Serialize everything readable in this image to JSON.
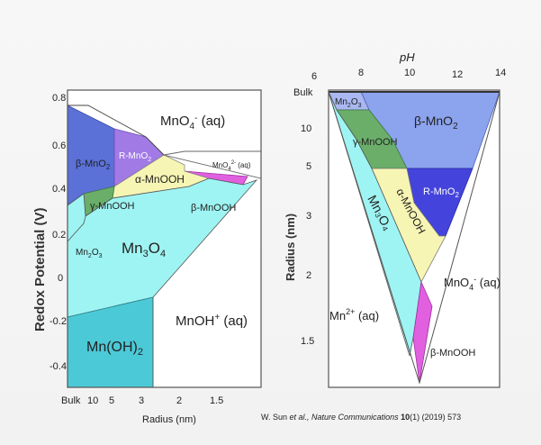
{
  "citation": {
    "authors": "W. Sun",
    "etal": " et al.,",
    "journal": "Nature Communications",
    "volume": "10",
    "issue_pages": "(1) (2019) 573"
  },
  "chart_data": [
    {
      "type": "phase-diagram",
      "title": "",
      "xlabel": "Radius (nm)",
      "ylabel": "Redox Potential (V)",
      "xticks": [
        "Bulk",
        "10",
        "5",
        "3",
        "2",
        "1.5"
      ],
      "yticks": [
        "0.8",
        "0.6",
        "0.4",
        "0.2",
        "0",
        "-0.2",
        "-0.4"
      ],
      "ylim": [
        -0.45,
        0.85
      ],
      "regions": [
        {
          "name": "MnO4- (aq)",
          "label": "MnO",
          "sub": "4",
          "sup": "-",
          "suffix": " (aq)",
          "color": "#ffffff"
        },
        {
          "name": "beta-MnO2",
          "label": "β-MnO",
          "sub": "2",
          "color": "#5b71d8"
        },
        {
          "name": "R-MnO2",
          "label": "R-MnO",
          "sub": "2",
          "color": "#a27ae6"
        },
        {
          "name": "MnO4 2- (aq)",
          "label": "MnO",
          "sub": "4",
          "sup": "2-",
          "suffix": " (aq)",
          "color": "#ffffff"
        },
        {
          "name": "alpha-MnOOH",
          "label": "α-MnOOH",
          "color": "#f7f5b4"
        },
        {
          "name": "gamma-MnOOH",
          "label": "γ-MnOOH",
          "color": "#6aae6a"
        },
        {
          "name": "delta-MnO2 sliver",
          "label": "",
          "color": "#e060e0"
        },
        {
          "name": "beta-MnOOH",
          "label": "β-MnOOH",
          "color": "#9ef4f2"
        },
        {
          "name": "Mn2O3",
          "label": "Mn",
          "sub": "2",
          "mid": "O",
          "sub2": "3",
          "color": "#9ef4f2"
        },
        {
          "name": "Mn3O4",
          "label": "Mn",
          "sub": "3",
          "mid": "O",
          "sub2": "4",
          "color": "#9ef4f2"
        },
        {
          "name": "MnOH+ (aq)",
          "label": "MnOH",
          "sup": "+",
          "suffix": " (aq)",
          "color": "#ffffff"
        },
        {
          "name": "Mn(OH)2",
          "label": "Mn(OH)",
          "sub": "2",
          "color": "#4cc9d6"
        }
      ]
    },
    {
      "type": "phase-diagram",
      "title": "",
      "xlabel": "pH",
      "ylabel": "Radius (nm)",
      "xticks": [
        "6",
        "8",
        "10",
        "12",
        "14"
      ],
      "xlim": [
        6,
        14
      ],
      "yticks": [
        "Bulk",
        "10",
        "5",
        "3",
        "2",
        "1.5"
      ],
      "regions": [
        {
          "name": "Mn2O3",
          "label": "Mn",
          "sub": "2",
          "mid": "O",
          "sub2": "3",
          "color": "#aab8f2"
        },
        {
          "name": "beta-MnO2",
          "label": "β-MnO",
          "sub": "2",
          "color": "#8ca3ee"
        },
        {
          "name": "gamma-MnOOH",
          "label": "γ-MnOOH",
          "color": "#6aae6a"
        },
        {
          "name": "R-MnO2",
          "label": "R-MnO",
          "sub": "2",
          "color": "#4444dd"
        },
        {
          "name": "Mn3O4",
          "label": "Mn₃O₄",
          "color": "#9ef4f2"
        },
        {
          "name": "alpha-MnOOH",
          "label": "α-MnOOH",
          "color": "#f7f5b4"
        },
        {
          "name": "MnO4- (aq)",
          "label": "MnO",
          "sub": "4",
          "sup": "-",
          "suffix": " (aq)",
          "color": "#ffffff"
        },
        {
          "name": "Mn2+ (aq)",
          "label": "Mn",
          "sup": "2+",
          "suffix": " (aq)",
          "color": "#ffffff"
        },
        {
          "name": "beta-MnOOH",
          "label": "β-MnOOH",
          "color": "#e060e0"
        }
      ]
    }
  ]
}
